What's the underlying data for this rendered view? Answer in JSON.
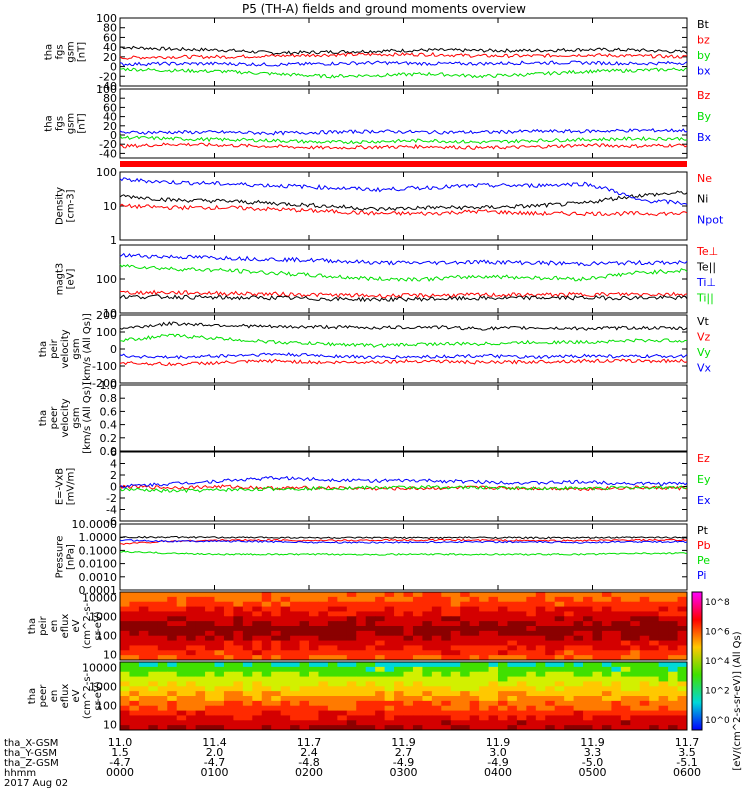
{
  "title": "P5 (TH-A) fields and ground moments overview",
  "colors": {
    "black": "#000000",
    "red": "#ff0000",
    "green": "#00e000",
    "blue": "#0000ff"
  },
  "chart_data": [
    {
      "type": "line",
      "ylabel": [
        "tha",
        "fgs",
        "gsm",
        "[nT]"
      ],
      "ylim": [
        -40,
        100
      ],
      "ticks": [
        "100",
        "80",
        "60",
        "40",
        "20",
        "0",
        "-20",
        "-40"
      ],
      "series": [
        {
          "name": "Bt",
          "color": "black",
          "values": [
            40,
            36,
            34,
            28,
            30,
            32,
            34,
            33,
            33,
            35,
            34,
            30
          ]
        },
        {
          "name": "bz",
          "color": "red",
          "values": [
            18,
            20,
            20,
            22,
            24,
            25,
            25,
            22,
            22,
            24,
            22,
            20
          ]
        },
        {
          "name": "by",
          "color": "green",
          "values": [
            -5,
            -8,
            -10,
            -15,
            -20,
            -18,
            -15,
            -20,
            -16,
            -10,
            -8,
            -5
          ]
        },
        {
          "name": "bx",
          "color": "blue",
          "values": [
            5,
            6,
            6,
            4,
            6,
            8,
            6,
            6,
            8,
            8,
            6,
            8
          ]
        }
      ]
    },
    {
      "type": "line",
      "ylabel": [
        "tha",
        "fgs",
        "gsm",
        "[nT]"
      ],
      "ylim": [
        -50,
        100
      ],
      "ticks": [
        "100",
        "80",
        "60",
        "40",
        "20",
        "0",
        "-20",
        "-40"
      ],
      "series": [
        {
          "name": "Bz",
          "color": "red",
          "values": [
            -25,
            -20,
            -22,
            -25,
            -28,
            -26,
            -25,
            -28,
            -26,
            -22,
            -24,
            -22
          ]
        },
        {
          "name": "By",
          "color": "green",
          "values": [
            -5,
            -8,
            -10,
            -12,
            -16,
            -14,
            -12,
            -16,
            -12,
            -10,
            -8,
            -8
          ]
        },
        {
          "name": "Bx",
          "color": "blue",
          "values": [
            5,
            6,
            6,
            4,
            6,
            8,
            6,
            6,
            8,
            8,
            10,
            10
          ]
        }
      ]
    },
    {
      "type": "line",
      "ylabel": [
        "Density",
        "[cm-3]"
      ],
      "log": true,
      "ylim": [
        1,
        100
      ],
      "ticks": [
        "100",
        "10",
        "1"
      ],
      "series": [
        {
          "name": "Ne",
          "color": "red",
          "values": [
            10,
            9,
            9,
            8,
            7,
            6,
            6,
            7,
            6,
            6,
            6,
            6
          ]
        },
        {
          "name": "Ni",
          "color": "black",
          "values": [
            20,
            15,
            14,
            12,
            10,
            8,
            9,
            9,
            10,
            12,
            20,
            25
          ]
        },
        {
          "name": "Npot",
          "color": "blue",
          "values": [
            60,
            50,
            45,
            40,
            35,
            30,
            35,
            40,
            40,
            45,
            15,
            12
          ]
        }
      ]
    },
    {
      "type": "line",
      "ylabel": [
        "magt3",
        "[eV]"
      ],
      "log": true,
      "ylim": [
        10,
        1000
      ],
      "ticks": [
        "100",
        "10"
      ],
      "series": [
        {
          "name": "Te⊥",
          "color": "red",
          "values": [
            40,
            40,
            38,
            36,
            34,
            32,
            33,
            34,
            34,
            35,
            36,
            36
          ]
        },
        {
          "name": "Te||",
          "color": "black",
          "values": [
            30,
            30,
            28,
            28,
            26,
            25,
            26,
            27,
            28,
            28,
            28,
            28
          ]
        },
        {
          "name": "Ti⊥",
          "color": "blue",
          "values": [
            500,
            450,
            420,
            380,
            350,
            300,
            300,
            320,
            300,
            280,
            300,
            300
          ]
        },
        {
          "name": "Ti||",
          "color": "green",
          "values": [
            250,
            200,
            180,
            150,
            120,
            100,
            100,
            120,
            110,
            100,
            150,
            180
          ]
        }
      ]
    },
    {
      "type": "line",
      "ylabel": [
        "tha",
        "peir",
        "velocity",
        "gsm",
        "[km/s (All Qs)]"
      ],
      "ylim": [
        -200,
        200
      ],
      "ticks": [
        "200",
        "100",
        "0",
        "-100",
        "-200"
      ],
      "series": [
        {
          "name": "Vt",
          "color": "black",
          "values": [
            120,
            150,
            140,
            130,
            130,
            125,
            130,
            120,
            125,
            120,
            125,
            120
          ]
        },
        {
          "name": "Vz",
          "color": "red",
          "values": [
            -80,
            -90,
            -80,
            -70,
            -80,
            -75,
            -70,
            -80,
            -75,
            -70,
            -70,
            -70
          ]
        },
        {
          "name": "Vy",
          "color": "green",
          "values": [
            50,
            80,
            60,
            40,
            30,
            20,
            30,
            30,
            40,
            40,
            50,
            50
          ]
        },
        {
          "name": "Vx",
          "color": "blue",
          "values": [
            -40,
            -50,
            -40,
            -30,
            -40,
            -50,
            -45,
            -40,
            -50,
            -40,
            -45,
            -40
          ]
        }
      ]
    },
    {
      "type": "line",
      "ylabel": [
        "tha",
        "peer",
        "velocity",
        "gsm",
        "[km/s (All Qs)]"
      ],
      "ylim": [
        0,
        1
      ],
      "ticks": [
        "1.0",
        "0.8",
        "0.6",
        "0.4",
        "0.2",
        "0.0"
      ],
      "series": [
        {
          "name": "Vt",
          "color": "black",
          "values": []
        },
        {
          "name": "Vz",
          "color": "red",
          "values": []
        },
        {
          "name": "Vy",
          "color": "green",
          "values": []
        },
        {
          "name": "Vx",
          "color": "blue",
          "values": []
        }
      ]
    },
    {
      "type": "line",
      "ylabel": [
        "E=-VxB",
        "[mV/m]"
      ],
      "ylim": [
        -6,
        6
      ],
      "ticks": [
        "6",
        "4",
        "2",
        "0",
        "-2",
        "-4",
        "-6"
      ],
      "series": [
        {
          "name": "Ez",
          "color": "red",
          "values": [
            0,
            -0.2,
            0,
            -0.3,
            -0.2,
            -0.4,
            -0.3,
            -0.2,
            -0.3,
            -0.4,
            -0.2,
            -0.3
          ]
        },
        {
          "name": "Ey",
          "color": "green",
          "values": [
            -0.5,
            -0.8,
            -0.6,
            -0.4,
            -0.3,
            -0.2,
            -0.1,
            -0.2,
            -0.3,
            -0.3,
            -0.2,
            -0.1
          ]
        },
        {
          "name": "Ex",
          "color": "blue",
          "values": [
            0,
            0.5,
            1,
            1.5,
            1.2,
            1,
            1,
            0.8,
            0.6,
            0.8,
            0.5,
            0.5
          ]
        }
      ]
    },
    {
      "type": "line",
      "ylabel": [
        "Pressure",
        "[nPa]"
      ],
      "log": true,
      "ylim": [
        0.0001,
        10
      ],
      "ticks": [
        "10.0000",
        "1.0000",
        "0.1000",
        "0.0100",
        "0.0010",
        "0.0001"
      ],
      "series": [
        {
          "name": "Pt",
          "color": "black",
          "values": [
            1,
            1,
            0.95,
            0.95,
            0.9,
            0.9,
            0.9,
            0.95,
            0.9,
            0.9,
            0.95,
            0.95
          ]
        },
        {
          "name": "Pb",
          "color": "red",
          "values": [
            0.3,
            0.5,
            0.6,
            0.6,
            0.55,
            0.6,
            0.6,
            0.6,
            0.55,
            0.55,
            0.6,
            0.6
          ]
        },
        {
          "name": "Pe",
          "color": "green",
          "values": [
            0.08,
            0.06,
            0.05,
            0.05,
            0.05,
            0.05,
            0.05,
            0.05,
            0.05,
            0.05,
            0.06,
            0.06
          ]
        },
        {
          "name": "Pi",
          "color": "blue",
          "values": [
            0.6,
            0.5,
            0.5,
            0.45,
            0.4,
            0.4,
            0.42,
            0.45,
            0.42,
            0.4,
            0.45,
            0.45
          ]
        }
      ]
    },
    {
      "type": "heatmap",
      "ylabel": [
        "tha",
        "peir",
        "en",
        "eflux",
        "eV",
        "(cm^2-s-",
        "sr-eV)"
      ],
      "log": true,
      "ylim": [
        5,
        20000
      ],
      "ticks": [
        "10000",
        "1000",
        "100",
        "10"
      ]
    },
    {
      "type": "heatmap",
      "ylabel": [
        "tha",
        "peer",
        "en",
        "eflux",
        "eV",
        "(cm^2-s-",
        "sr-eV)"
      ],
      "log": true,
      "ylim": [
        5,
        20000
      ],
      "ticks": [
        "10000",
        "1000",
        "100",
        "10"
      ]
    }
  ],
  "colorbar": {
    "label": "[eV/(cm^2-s-sr-eV)] (All Qs)",
    "ticks": [
      "10^8",
      "10^6",
      "10^4",
      "10^2",
      "10^0"
    ]
  },
  "xaxis": {
    "row_labels": [
      "tha_X-GSM",
      "tha_Y-GSM",
      "tha_Z-GSM",
      "hhmm",
      "2017 Aug 02"
    ],
    "columns": [
      [
        "11.0",
        "1.5",
        "-4.7",
        "0000"
      ],
      [
        "11.4",
        "2.0",
        "-4.7",
        "0100"
      ],
      [
        "11.7",
        "2.4",
        "-4.8",
        "0200"
      ],
      [
        "11.9",
        "2.7",
        "-4.9",
        "0300"
      ],
      [
        "11.9",
        "3.0",
        "-4.9",
        "0400"
      ],
      [
        "11.9",
        "3.3",
        "-5.0",
        "0500"
      ],
      [
        "11.7",
        "3.5",
        "-5.1",
        "0600"
      ]
    ]
  }
}
